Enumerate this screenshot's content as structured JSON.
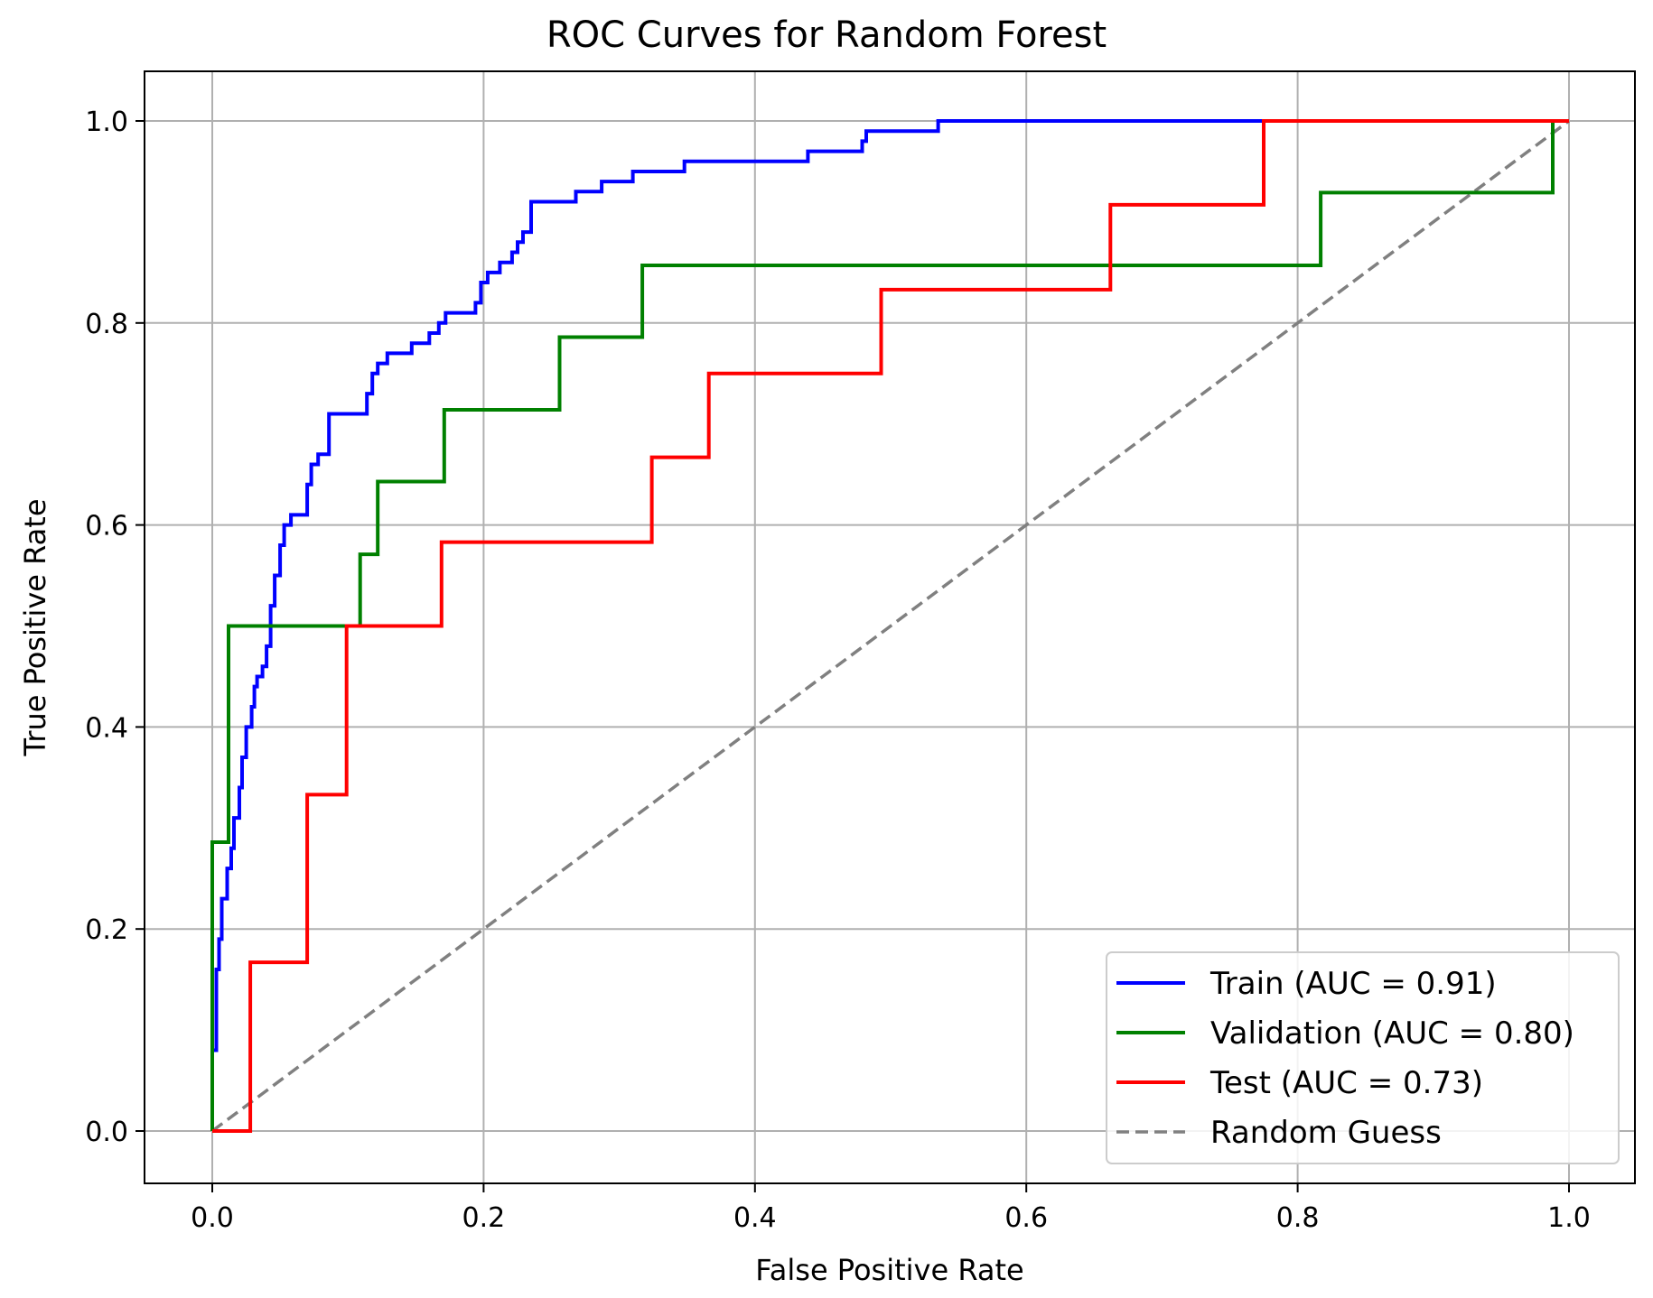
{
  "chart_data": {
    "type": "line",
    "title": "ROC Curves for Random Forest",
    "xlabel": "False Positive Rate",
    "ylabel": "True Positive Rate",
    "xlim": [
      -0.05,
      1.05
    ],
    "ylim": [
      -0.05,
      1.05
    ],
    "x_ticks": [
      "0.0",
      "0.2",
      "0.4",
      "0.6",
      "0.8",
      "1.0"
    ],
    "y_ticks": [
      "0.0",
      "0.2",
      "0.4",
      "0.6",
      "0.8",
      "1.0"
    ],
    "grid": true,
    "legend_position": "lower-right",
    "series": [
      {
        "name": "Train (AUC = 0.91)",
        "color": "#0000ff",
        "style": "solid",
        "points": [
          [
            0.0,
            0.08
          ],
          [
            0.003,
            0.08
          ],
          [
            0.003,
            0.16
          ],
          [
            0.005,
            0.16
          ],
          [
            0.005,
            0.19
          ],
          [
            0.007,
            0.19
          ],
          [
            0.007,
            0.23
          ],
          [
            0.011,
            0.23
          ],
          [
            0.011,
            0.26
          ],
          [
            0.014,
            0.26
          ],
          [
            0.014,
            0.28
          ],
          [
            0.016,
            0.28
          ],
          [
            0.016,
            0.31
          ],
          [
            0.02,
            0.31
          ],
          [
            0.02,
            0.34
          ],
          [
            0.022,
            0.34
          ],
          [
            0.022,
            0.37
          ],
          [
            0.025,
            0.37
          ],
          [
            0.025,
            0.4
          ],
          [
            0.029,
            0.4
          ],
          [
            0.029,
            0.42
          ],
          [
            0.031,
            0.42
          ],
          [
            0.031,
            0.44
          ],
          [
            0.033,
            0.44
          ],
          [
            0.033,
            0.45
          ],
          [
            0.037,
            0.45
          ],
          [
            0.037,
            0.46
          ],
          [
            0.04,
            0.46
          ],
          [
            0.04,
            0.48
          ],
          [
            0.043,
            0.48
          ],
          [
            0.043,
            0.52
          ],
          [
            0.046,
            0.52
          ],
          [
            0.046,
            0.55
          ],
          [
            0.05,
            0.55
          ],
          [
            0.05,
            0.58
          ],
          [
            0.053,
            0.58
          ],
          [
            0.053,
            0.6
          ],
          [
            0.058,
            0.6
          ],
          [
            0.058,
            0.61
          ],
          [
            0.07,
            0.61
          ],
          [
            0.07,
            0.64
          ],
          [
            0.073,
            0.64
          ],
          [
            0.073,
            0.66
          ],
          [
            0.078,
            0.66
          ],
          [
            0.078,
            0.67
          ],
          [
            0.086,
            0.67
          ],
          [
            0.086,
            0.71
          ],
          [
            0.114,
            0.71
          ],
          [
            0.114,
            0.73
          ],
          [
            0.118,
            0.73
          ],
          [
            0.118,
            0.75
          ],
          [
            0.122,
            0.75
          ],
          [
            0.122,
            0.76
          ],
          [
            0.129,
            0.76
          ],
          [
            0.129,
            0.77
          ],
          [
            0.147,
            0.77
          ],
          [
            0.147,
            0.78
          ],
          [
            0.16,
            0.78
          ],
          [
            0.16,
            0.79
          ],
          [
            0.167,
            0.79
          ],
          [
            0.167,
            0.8
          ],
          [
            0.172,
            0.8
          ],
          [
            0.172,
            0.81
          ],
          [
            0.194,
            0.81
          ],
          [
            0.194,
            0.82
          ],
          [
            0.198,
            0.82
          ],
          [
            0.198,
            0.84
          ],
          [
            0.203,
            0.84
          ],
          [
            0.203,
            0.85
          ],
          [
            0.212,
            0.85
          ],
          [
            0.212,
            0.86
          ],
          [
            0.221,
            0.86
          ],
          [
            0.221,
            0.87
          ],
          [
            0.225,
            0.87
          ],
          [
            0.225,
            0.88
          ],
          [
            0.229,
            0.88
          ],
          [
            0.229,
            0.89
          ],
          [
            0.235,
            0.89
          ],
          [
            0.235,
            0.92
          ],
          [
            0.268,
            0.92
          ],
          [
            0.268,
            0.93
          ],
          [
            0.287,
            0.93
          ],
          [
            0.287,
            0.94
          ],
          [
            0.31,
            0.94
          ],
          [
            0.31,
            0.95
          ],
          [
            0.348,
            0.95
          ],
          [
            0.348,
            0.96
          ],
          [
            0.439,
            0.96
          ],
          [
            0.439,
            0.97
          ],
          [
            0.479,
            0.97
          ],
          [
            0.479,
            0.98
          ],
          [
            0.482,
            0.98
          ],
          [
            0.482,
            0.99
          ],
          [
            0.535,
            0.99
          ],
          [
            0.535,
            1.0
          ],
          [
            1.0,
            1.0
          ]
        ]
      },
      {
        "name": "Validation (AUC = 0.80)",
        "color": "#008000",
        "style": "solid",
        "points": [
          [
            0.0,
            0.0
          ],
          [
            0.0,
            0.286
          ],
          [
            0.012,
            0.286
          ],
          [
            0.012,
            0.5
          ],
          [
            0.109,
            0.5
          ],
          [
            0.109,
            0.571
          ],
          [
            0.122,
            0.571
          ],
          [
            0.122,
            0.643
          ],
          [
            0.171,
            0.643
          ],
          [
            0.171,
            0.714
          ],
          [
            0.256,
            0.714
          ],
          [
            0.256,
            0.786
          ],
          [
            0.317,
            0.786
          ],
          [
            0.317,
            0.857
          ],
          [
            0.817,
            0.857
          ],
          [
            0.817,
            0.929
          ],
          [
            0.988,
            0.929
          ],
          [
            0.988,
            1.0
          ],
          [
            1.0,
            1.0
          ]
        ]
      },
      {
        "name": "Test (AUC = 0.73)",
        "color": "#ff0000",
        "style": "solid",
        "points": [
          [
            0.0,
            0.0
          ],
          [
            0.028,
            0.0
          ],
          [
            0.028,
            0.167
          ],
          [
            0.07,
            0.167
          ],
          [
            0.07,
            0.333
          ],
          [
            0.099,
            0.333
          ],
          [
            0.099,
            0.5
          ],
          [
            0.169,
            0.5
          ],
          [
            0.169,
            0.583
          ],
          [
            0.324,
            0.583
          ],
          [
            0.324,
            0.667
          ],
          [
            0.366,
            0.667
          ],
          [
            0.366,
            0.75
          ],
          [
            0.493,
            0.75
          ],
          [
            0.493,
            0.833
          ],
          [
            0.662,
            0.833
          ],
          [
            0.662,
            0.917
          ],
          [
            0.775,
            0.917
          ],
          [
            0.775,
            1.0
          ],
          [
            1.0,
            1.0
          ]
        ]
      },
      {
        "name": "Random Guess",
        "color": "#808080",
        "style": "dashed",
        "points": [
          [
            0.0,
            0.0
          ],
          [
            1.0,
            1.0
          ]
        ]
      }
    ]
  }
}
